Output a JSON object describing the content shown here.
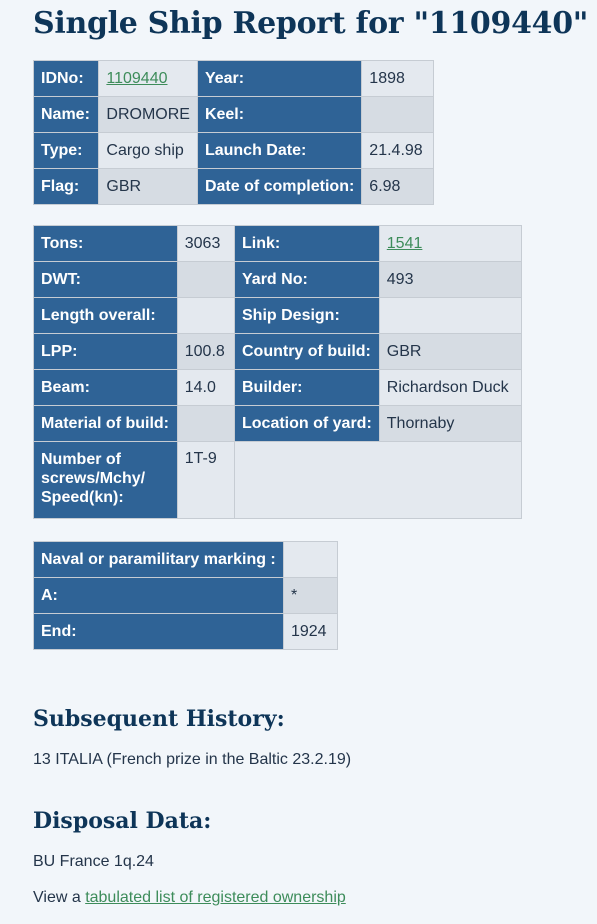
{
  "title": "Single Ship Report for \"1109440\"",
  "table1": {
    "idno_label": "IDNo:",
    "idno_value": "1109440",
    "year_label": "Year:",
    "year_value": "1898",
    "name_label": "Name:",
    "name_value": "DROMORE",
    "keel_label": "Keel:",
    "keel_value": "",
    "type_label": "Type:",
    "type_value": "Cargo ship",
    "launch_label": "Launch Date:",
    "launch_value": "21.4.98",
    "flag_label": "Flag:",
    "flag_value": "GBR",
    "completion_label": "Date of completion:",
    "completion_value": "6.98"
  },
  "table2": {
    "tons_label": "Tons:",
    "tons_value": "3063",
    "link_label": "Link:",
    "link_value": "1541",
    "dwt_label": "DWT:",
    "dwt_value": "",
    "yard_label": "Yard No:",
    "yard_value": "493",
    "length_label": "Length overall:",
    "length_value": "",
    "design_label": "Ship Design:",
    "design_value": "",
    "lpp_label": "LPP:",
    "lpp_value": "100.8",
    "country_label": "Country of build:",
    "country_value": "GBR",
    "beam_label": "Beam:",
    "beam_value": "14.0",
    "builder_label": "Builder:",
    "builder_value": "Richardson Duck",
    "material_label": "Material of build:",
    "material_value": "",
    "location_label": "Location of yard:",
    "location_value": "Thornaby",
    "screws_label_1": "Number of",
    "screws_label_2": "screws/Mchy/",
    "screws_label_3": "Speed(kn):",
    "screws_value": "1T-9"
  },
  "table3": {
    "naval_label": "Naval or paramilitary marking :",
    "naval_value": "",
    "a_label": "A:",
    "a_value": "*",
    "end_label": "End:",
    "end_value": "1924"
  },
  "history": {
    "heading": "Subsequent History:",
    "text": "13 ITALIA (French prize in the Baltic 23.2.19)"
  },
  "disposal": {
    "heading": "Disposal Data:",
    "text": "BU France 1q.24",
    "view_prefix": "View a ",
    "view_link": "tabulated list of registered ownership"
  }
}
